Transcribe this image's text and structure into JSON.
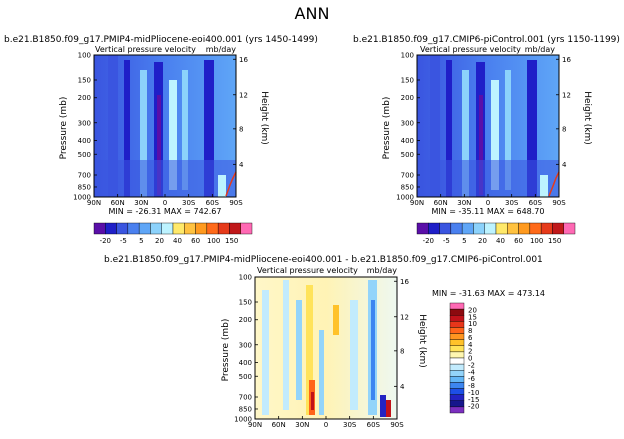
{
  "page_title": "ANN",
  "colors": {
    "top_bar": [
      "#5a0fa8",
      "#1f1fc8",
      "#3a55e0",
      "#4a80ef",
      "#5fa6f7",
      "#8cd2fb",
      "#bdf3ff",
      "#ffe96a",
      "#ffc240",
      "#ff9a1f",
      "#ff6a1a",
      "#e63a1a",
      "#c0181a",
      "#ff69b4"
    ],
    "diff_bar": [
      "#7b2fbf",
      "#16168c",
      "#2323c2",
      "#1d4fe6",
      "#3d86f0",
      "#63b6f6",
      "#93d4fa",
      "#c2ebfd",
      "#ffffff",
      "#fff7b0",
      "#ffe35a",
      "#ffc22a",
      "#ff9520",
      "#ff641a",
      "#e8361a",
      "#c1121a",
      "#8c0a0f",
      "#ff69b4"
    ]
  },
  "chart_data": [
    {
      "type": "heatmap",
      "title": "b.e21.B1850.f09_g17.PMIP4-midPliocene-eoi400.001 (yrs 1450-1499)",
      "subtitle_left": "Vertical pressure velocity",
      "subtitle_right": "mb/day",
      "ylabel": "Pressure (mb)",
      "ylabel_right": "Height (km)",
      "x_ticks": [
        "90N",
        "60N",
        "30N",
        "0",
        "30S",
        "60S",
        "90S"
      ],
      "y_ticks": [
        "100",
        "150",
        "200",
        "300",
        "400",
        "500",
        "700",
        "850",
        "1000"
      ],
      "y_right_ticks": [
        "16",
        "12",
        "8",
        "4"
      ],
      "stats": "MIN = -26.31   MAX = 742.67",
      "colorbar_labels": [
        "-20",
        "-5",
        "5",
        "20",
        "40",
        "60",
        "100",
        "150"
      ]
    },
    {
      "type": "heatmap",
      "title": "b.e21.B1850.f09_g17.CMIP6-piControl.001 (yrs 1150-1199)",
      "subtitle_left": "Vertical pressure velocity",
      "subtitle_right": "mb/day",
      "ylabel": "Pressure (mb)",
      "ylabel_right": "Height (km)",
      "x_ticks": [
        "90N",
        "60N",
        "30N",
        "0",
        "30S",
        "60S",
        "90S"
      ],
      "y_ticks": [
        "100",
        "150",
        "200",
        "300",
        "400",
        "500",
        "700",
        "850",
        "1000"
      ],
      "y_right_ticks": [
        "16",
        "12",
        "8",
        "4"
      ],
      "stats": "MIN = -35.11   MAX = 648.70",
      "colorbar_labels": [
        "-20",
        "-5",
        "5",
        "20",
        "40",
        "60",
        "100",
        "150"
      ]
    },
    {
      "type": "heatmap",
      "title": "b.e21.B1850.f09_g17.PMIP4-midPliocene-eoi400.001  -  b.e21.B1850.f09_g17.CMIP6-piControl.001",
      "subtitle_left": "Vertical pressure velocity",
      "subtitle_right": "mb/day",
      "ylabel": "Pressure (mb)",
      "ylabel_right": "Height (km)",
      "x_ticks": [
        "90N",
        "60N",
        "30N",
        "0",
        "30S",
        "60S",
        "90S"
      ],
      "y_ticks": [
        "100",
        "150",
        "200",
        "300",
        "400",
        "500",
        "700",
        "850",
        "1000"
      ],
      "y_right_ticks": [
        "16",
        "12",
        "8",
        "4"
      ],
      "stats": "MIN = -31.63   MAX = 473.14",
      "colorbar_labels": [
        "20",
        "15",
        "10",
        "8",
        "6",
        "4",
        "2",
        "0",
        "-2",
        "-4",
        "-6",
        "-8",
        "-10",
        "-15",
        "-20"
      ]
    }
  ]
}
